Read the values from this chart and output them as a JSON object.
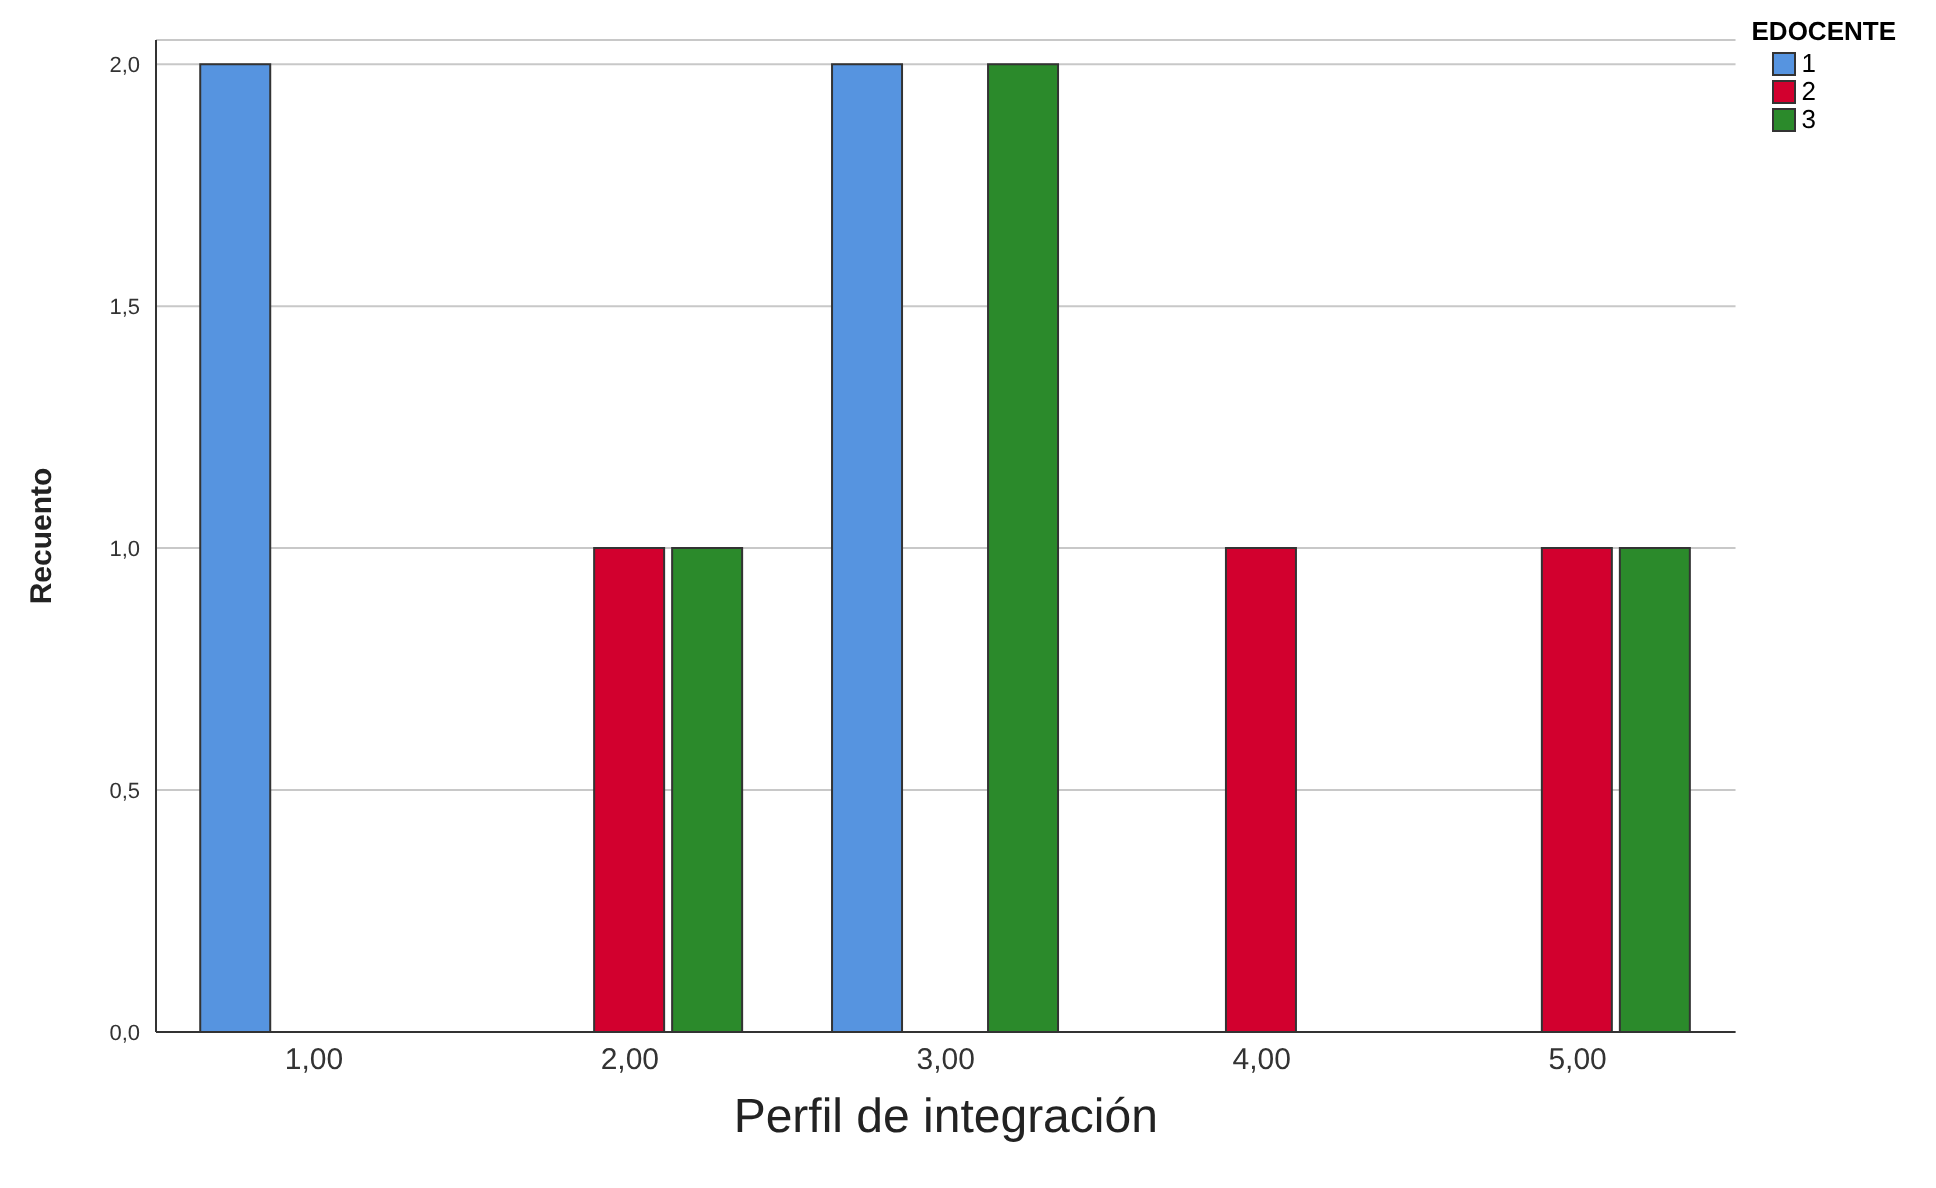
{
  "chart_data": {
    "type": "bar",
    "xlabel": "Perfil de integración",
    "ylabel": "Recuento",
    "legend_title": "EDOCENTE",
    "categories": [
      "1,00",
      "2,00",
      "3,00",
      "4,00",
      "5,00"
    ],
    "series": [
      {
        "name": "1",
        "color": "#5694e0",
        "values": [
          2,
          0,
          2,
          0,
          0
        ]
      },
      {
        "name": "2",
        "color": "#d2002e",
        "values": [
          0,
          1,
          0,
          1,
          1
        ]
      },
      {
        "name": "3",
        "color": "#2b8a2b",
        "values": [
          0,
          1,
          2,
          0,
          1
        ]
      }
    ],
    "ylim": [
      0,
      2.05
    ],
    "yticks": [
      {
        "value": 0,
        "label": "0,0"
      },
      {
        "value": 0.5,
        "label": "0,5"
      },
      {
        "value": 1,
        "label": "1,0"
      },
      {
        "value": 1.5,
        "label": "1,5"
      },
      {
        "value": 2,
        "label": "2,0"
      }
    ],
    "grid": "y",
    "legend": "top right"
  }
}
